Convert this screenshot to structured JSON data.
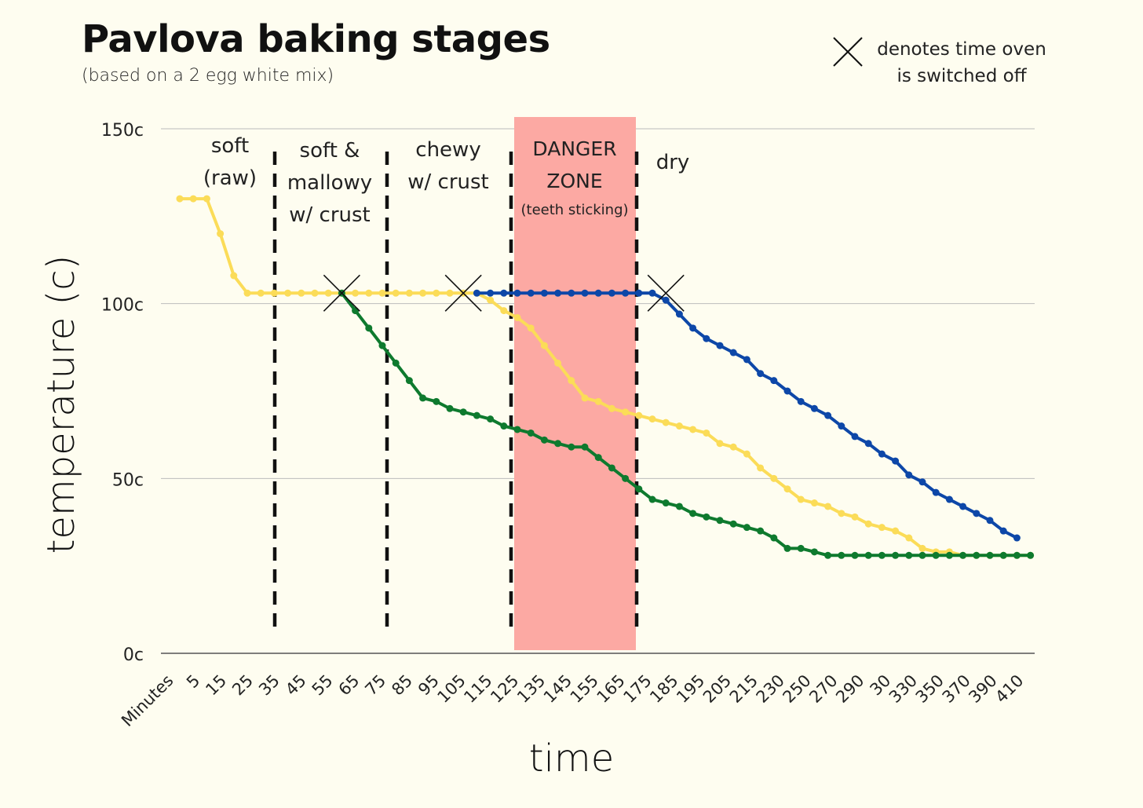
{
  "title": "Pavlova baking stages",
  "subtitle": "(based on a 2 egg white mix)",
  "legend": {
    "line1": "denotes time oven",
    "line2": "is switched off",
    "icon": "x-mark-icon"
  },
  "chart_data": {
    "type": "line",
    "ylabel": "temperature (c)",
    "xlabel": "time",
    "ylim": [
      0,
      150
    ],
    "y_ticks": [
      0,
      50,
      100,
      150
    ],
    "y_tick_labels": [
      "0c",
      "50c",
      "100c",
      "150c"
    ],
    "grid": true,
    "x_tick_labels": [
      "Minutes",
      "5",
      "15",
      "25",
      "35",
      "45",
      "55",
      "65",
      "75",
      "85",
      "95",
      "105",
      "115",
      "125",
      "135",
      "145",
      "155",
      "165",
      "175",
      "185",
      "195",
      "205",
      "215",
      "230",
      "250",
      "270",
      "290",
      "30",
      "330",
      "350",
      "370",
      "390",
      "410"
    ],
    "stages": [
      {
        "label_lines": [
          "soft",
          "(raw)"
        ]
      },
      {
        "label_lines": [
          "soft &",
          "mallowy",
          "w/ crust"
        ]
      },
      {
        "label_lines": [
          "chewy",
          "w/ crust"
        ]
      },
      {
        "label_lines": [
          "DANGER",
          "ZONE"
        ],
        "note": "(teeth sticking)",
        "highlight_color": "#fca9a3"
      },
      {
        "label_lines": [
          "dry"
        ]
      }
    ],
    "series": [
      {
        "color": "#fbdc58",
        "values": [
          130,
          130,
          130,
          120,
          108,
          103,
          103,
          103,
          103,
          103,
          103,
          103,
          103,
          103,
          103,
          103,
          103,
          103,
          103,
          103,
          103,
          103,
          103,
          101,
          98,
          96,
          93,
          88,
          83,
          78,
          73,
          72,
          70,
          69,
          68,
          67,
          66,
          65,
          64,
          63,
          60,
          59,
          57,
          53,
          50,
          47,
          44,
          43,
          42,
          40,
          39,
          37,
          36,
          35,
          33,
          30,
          29,
          29,
          28,
          28,
          28,
          28,
          28,
          28
        ]
      },
      {
        "color": "#0e7a2e",
        "values": [
          null,
          null,
          null,
          null,
          null,
          null,
          null,
          null,
          null,
          null,
          null,
          null,
          103,
          98,
          93,
          88,
          83,
          78,
          73,
          72,
          70,
          69,
          68,
          67,
          65,
          64,
          63,
          61,
          60,
          59,
          59,
          56,
          53,
          50,
          47,
          44,
          43,
          42,
          40,
          39,
          38,
          37,
          36,
          35,
          33,
          30,
          30,
          29,
          28,
          28,
          28,
          28,
          28,
          28,
          28,
          28,
          28,
          28,
          28,
          28,
          28,
          28,
          28,
          28
        ]
      },
      {
        "color": "#0d47a8",
        "values": [
          null,
          null,
          null,
          null,
          null,
          null,
          null,
          null,
          null,
          null,
          null,
          null,
          null,
          null,
          null,
          null,
          null,
          null,
          null,
          null,
          null,
          null,
          103,
          103,
          103,
          103,
          103,
          103,
          103,
          103,
          103,
          103,
          103,
          103,
          103,
          103,
          101,
          97,
          93,
          90,
          88,
          86,
          84,
          80,
          78,
          75,
          72,
          70,
          68,
          65,
          62,
          60,
          57,
          55,
          51,
          49,
          46,
          44,
          42,
          40,
          38,
          35,
          33
        ]
      }
    ],
    "oven_off_markers": [
      {
        "x_index": 12,
        "y": 103
      },
      {
        "x_index": 21,
        "y": 103
      },
      {
        "x_index": 36,
        "y": 103
      }
    ]
  }
}
